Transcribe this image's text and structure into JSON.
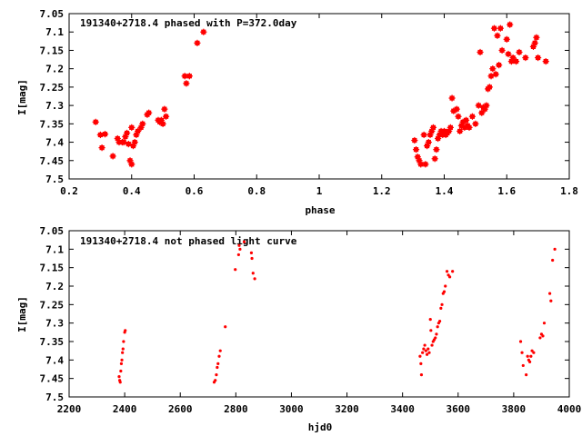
{
  "colors": {
    "points": "#ff0000",
    "axes": "#000000",
    "background": "#ffffff"
  },
  "chart_data": [
    {
      "type": "scatter",
      "title": "191340+2718.4 phased with P=372.0day",
      "xlabel": "phase",
      "ylabel": "I[mag]",
      "xlim": [
        0.2,
        1.8
      ],
      "ylim": [
        7.5,
        7.05
      ],
      "y_inverted": true,
      "grid": false,
      "marker": "large",
      "x_ticks": [
        0.2,
        0.4,
        0.6,
        0.8,
        1,
        1.2,
        1.4,
        1.6,
        1.8
      ],
      "x_tick_labels": [
        "0.2",
        "0.4",
        "0.6",
        "0.8",
        "1",
        "1.2",
        "1.4",
        "1.6",
        "1.8"
      ],
      "y_ticks": [
        7.05,
        7.1,
        7.15,
        7.2,
        7.25,
        7.3,
        7.35,
        7.4,
        7.45,
        7.5
      ],
      "y_tick_labels": [
        "7.05",
        "7.1",
        "7.15",
        "7.2",
        "7.25",
        "7.3",
        "7.35",
        "7.4",
        "7.45",
        "7.5"
      ],
      "points": [
        [
          0.285,
          7.345
        ],
        [
          0.3,
          7.38
        ],
        [
          0.305,
          7.415
        ],
        [
          0.315,
          7.378
        ],
        [
          0.34,
          7.438
        ],
        [
          0.355,
          7.39
        ],
        [
          0.36,
          7.4
        ],
        [
          0.37,
          7.4
        ],
        [
          0.375,
          7.4
        ],
        [
          0.38,
          7.385
        ],
        [
          0.385,
          7.375
        ],
        [
          0.39,
          7.405
        ],
        [
          0.395,
          7.45
        ],
        [
          0.4,
          7.36
        ],
        [
          0.4,
          7.46
        ],
        [
          0.405,
          7.41
        ],
        [
          0.41,
          7.4
        ],
        [
          0.415,
          7.38
        ],
        [
          0.42,
          7.37
        ],
        [
          0.43,
          7.36
        ],
        [
          0.435,
          7.35
        ],
        [
          0.45,
          7.325
        ],
        [
          0.455,
          7.32
        ],
        [
          0.485,
          7.34
        ],
        [
          0.49,
          7.345
        ],
        [
          0.495,
          7.34
        ],
        [
          0.5,
          7.35
        ],
        [
          0.505,
          7.31
        ],
        [
          0.51,
          7.33
        ],
        [
          0.57,
          7.22
        ],
        [
          0.575,
          7.24
        ],
        [
          0.585,
          7.22
        ],
        [
          0.61,
          7.13
        ],
        [
          0.63,
          7.1
        ],
        [
          1.305,
          7.395
        ],
        [
          1.31,
          7.42
        ],
        [
          1.315,
          7.44
        ],
        [
          1.32,
          7.45
        ],
        [
          1.325,
          7.46
        ],
        [
          1.335,
          7.38
        ],
        [
          1.34,
          7.46
        ],
        [
          1.345,
          7.41
        ],
        [
          1.35,
          7.4
        ],
        [
          1.355,
          7.38
        ],
        [
          1.36,
          7.37
        ],
        [
          1.365,
          7.36
        ],
        [
          1.37,
          7.445
        ],
        [
          1.375,
          7.42
        ],
        [
          1.38,
          7.39
        ],
        [
          1.385,
          7.38
        ],
        [
          1.39,
          7.37
        ],
        [
          1.395,
          7.38
        ],
        [
          1.4,
          7.37
        ],
        [
          1.405,
          7.38
        ],
        [
          1.41,
          7.375
        ],
        [
          1.415,
          7.37
        ],
        [
          1.42,
          7.36
        ],
        [
          1.425,
          7.28
        ],
        [
          1.43,
          7.315
        ],
        [
          1.44,
          7.31
        ],
        [
          1.445,
          7.33
        ],
        [
          1.45,
          7.37
        ],
        [
          1.455,
          7.355
        ],
        [
          1.46,
          7.345
        ],
        [
          1.465,
          7.36
        ],
        [
          1.47,
          7.34
        ],
        [
          1.475,
          7.355
        ],
        [
          1.48,
          7.36
        ],
        [
          1.49,
          7.33
        ],
        [
          1.5,
          7.35
        ],
        [
          1.51,
          7.3
        ],
        [
          1.515,
          7.155
        ],
        [
          1.52,
          7.32
        ],
        [
          1.525,
          7.305
        ],
        [
          1.53,
          7.31
        ],
        [
          1.535,
          7.3
        ],
        [
          1.54,
          7.255
        ],
        [
          1.545,
          7.25
        ],
        [
          1.55,
          7.22
        ],
        [
          1.555,
          7.2
        ],
        [
          1.56,
          7.09
        ],
        [
          1.565,
          7.215
        ],
        [
          1.57,
          7.11
        ],
        [
          1.575,
          7.19
        ],
        [
          1.58,
          7.09
        ],
        [
          1.585,
          7.15
        ],
        [
          1.6,
          7.12
        ],
        [
          1.605,
          7.16
        ],
        [
          1.61,
          7.08
        ],
        [
          1.615,
          7.18
        ],
        [
          1.62,
          7.17
        ],
        [
          1.63,
          7.18
        ],
        [
          1.64,
          7.155
        ],
        [
          1.66,
          7.17
        ],
        [
          1.685,
          7.14
        ],
        [
          1.69,
          7.13
        ],
        [
          1.695,
          7.115
        ],
        [
          1.7,
          7.17
        ],
        [
          1.725,
          7.18
        ]
      ]
    },
    {
      "type": "scatter",
      "title": "191340+2718.4 not phased light curve",
      "xlabel": "hjd0",
      "ylabel": "I[mag]",
      "xlim": [
        2200,
        4000
      ],
      "ylim": [
        7.5,
        7.05
      ],
      "y_inverted": true,
      "grid": false,
      "marker": "small",
      "x_ticks": [
        2200,
        2400,
        2600,
        2800,
        3000,
        3200,
        3400,
        3600,
        3800,
        4000
      ],
      "x_tick_labels": [
        "2200",
        "2400",
        "2600",
        "2800",
        "3000",
        "3200",
        "3400",
        "3600",
        "3800",
        "4000"
      ],
      "y_ticks": [
        7.05,
        7.1,
        7.15,
        7.2,
        7.25,
        7.3,
        7.35,
        7.4,
        7.45,
        7.5
      ],
      "y_tick_labels": [
        "7.05",
        "7.1",
        "7.15",
        "7.2",
        "7.25",
        "7.3",
        "7.35",
        "7.4",
        "7.45",
        "7.5"
      ],
      "points": [
        [
          2380,
          7.445
        ],
        [
          2382,
          7.455
        ],
        [
          2384,
          7.46
        ],
        [
          2386,
          7.43
        ],
        [
          2388,
          7.41
        ],
        [
          2390,
          7.4
        ],
        [
          2392,
          7.38
        ],
        [
          2394,
          7.37
        ],
        [
          2396,
          7.35
        ],
        [
          2400,
          7.325
        ],
        [
          2402,
          7.32
        ],
        [
          2722,
          7.46
        ],
        [
          2726,
          7.455
        ],
        [
          2730,
          7.44
        ],
        [
          2733,
          7.42
        ],
        [
          2736,
          7.41
        ],
        [
          2740,
          7.39
        ],
        [
          2744,
          7.375
        ],
        [
          2762,
          7.31
        ],
        [
          2798,
          7.155
        ],
        [
          2810,
          7.115
        ],
        [
          2812,
          7.09
        ],
        [
          2815,
          7.1
        ],
        [
          2830,
          7.08
        ],
        [
          2856,
          7.11
        ],
        [
          2858,
          7.125
        ],
        [
          2862,
          7.165
        ],
        [
          2868,
          7.18
        ],
        [
          3463,
          7.39
        ],
        [
          3466,
          7.41
        ],
        [
          3468,
          7.44
        ],
        [
          3472,
          7.38
        ],
        [
          3476,
          7.37
        ],
        [
          3480,
          7.36
        ],
        [
          3484,
          7.375
        ],
        [
          3488,
          7.385
        ],
        [
          3492,
          7.37
        ],
        [
          3496,
          7.38
        ],
        [
          3500,
          7.29
        ],
        [
          3502,
          7.32
        ],
        [
          3506,
          7.36
        ],
        [
          3510,
          7.35
        ],
        [
          3514,
          7.345
        ],
        [
          3518,
          7.34
        ],
        [
          3522,
          7.33
        ],
        [
          3526,
          7.31
        ],
        [
          3530,
          7.3
        ],
        [
          3534,
          7.295
        ],
        [
          3538,
          7.26
        ],
        [
          3542,
          7.25
        ],
        [
          3546,
          7.22
        ],
        [
          3550,
          7.215
        ],
        [
          3554,
          7.2
        ],
        [
          3560,
          7.16
        ],
        [
          3565,
          7.17
        ],
        [
          3570,
          7.175
        ],
        [
          3580,
          7.16
        ],
        [
          3825,
          7.35
        ],
        [
          3830,
          7.38
        ],
        [
          3834,
          7.415
        ],
        [
          3845,
          7.44
        ],
        [
          3850,
          7.39
        ],
        [
          3854,
          7.4
        ],
        [
          3858,
          7.405
        ],
        [
          3862,
          7.39
        ],
        [
          3866,
          7.375
        ],
        [
          3872,
          7.38
        ],
        [
          3895,
          7.34
        ],
        [
          3900,
          7.33
        ],
        [
          3905,
          7.335
        ],
        [
          3910,
          7.3
        ],
        [
          3930,
          7.22
        ],
        [
          3934,
          7.24
        ],
        [
          3940,
          7.13
        ],
        [
          3948,
          7.1
        ]
      ]
    }
  ]
}
